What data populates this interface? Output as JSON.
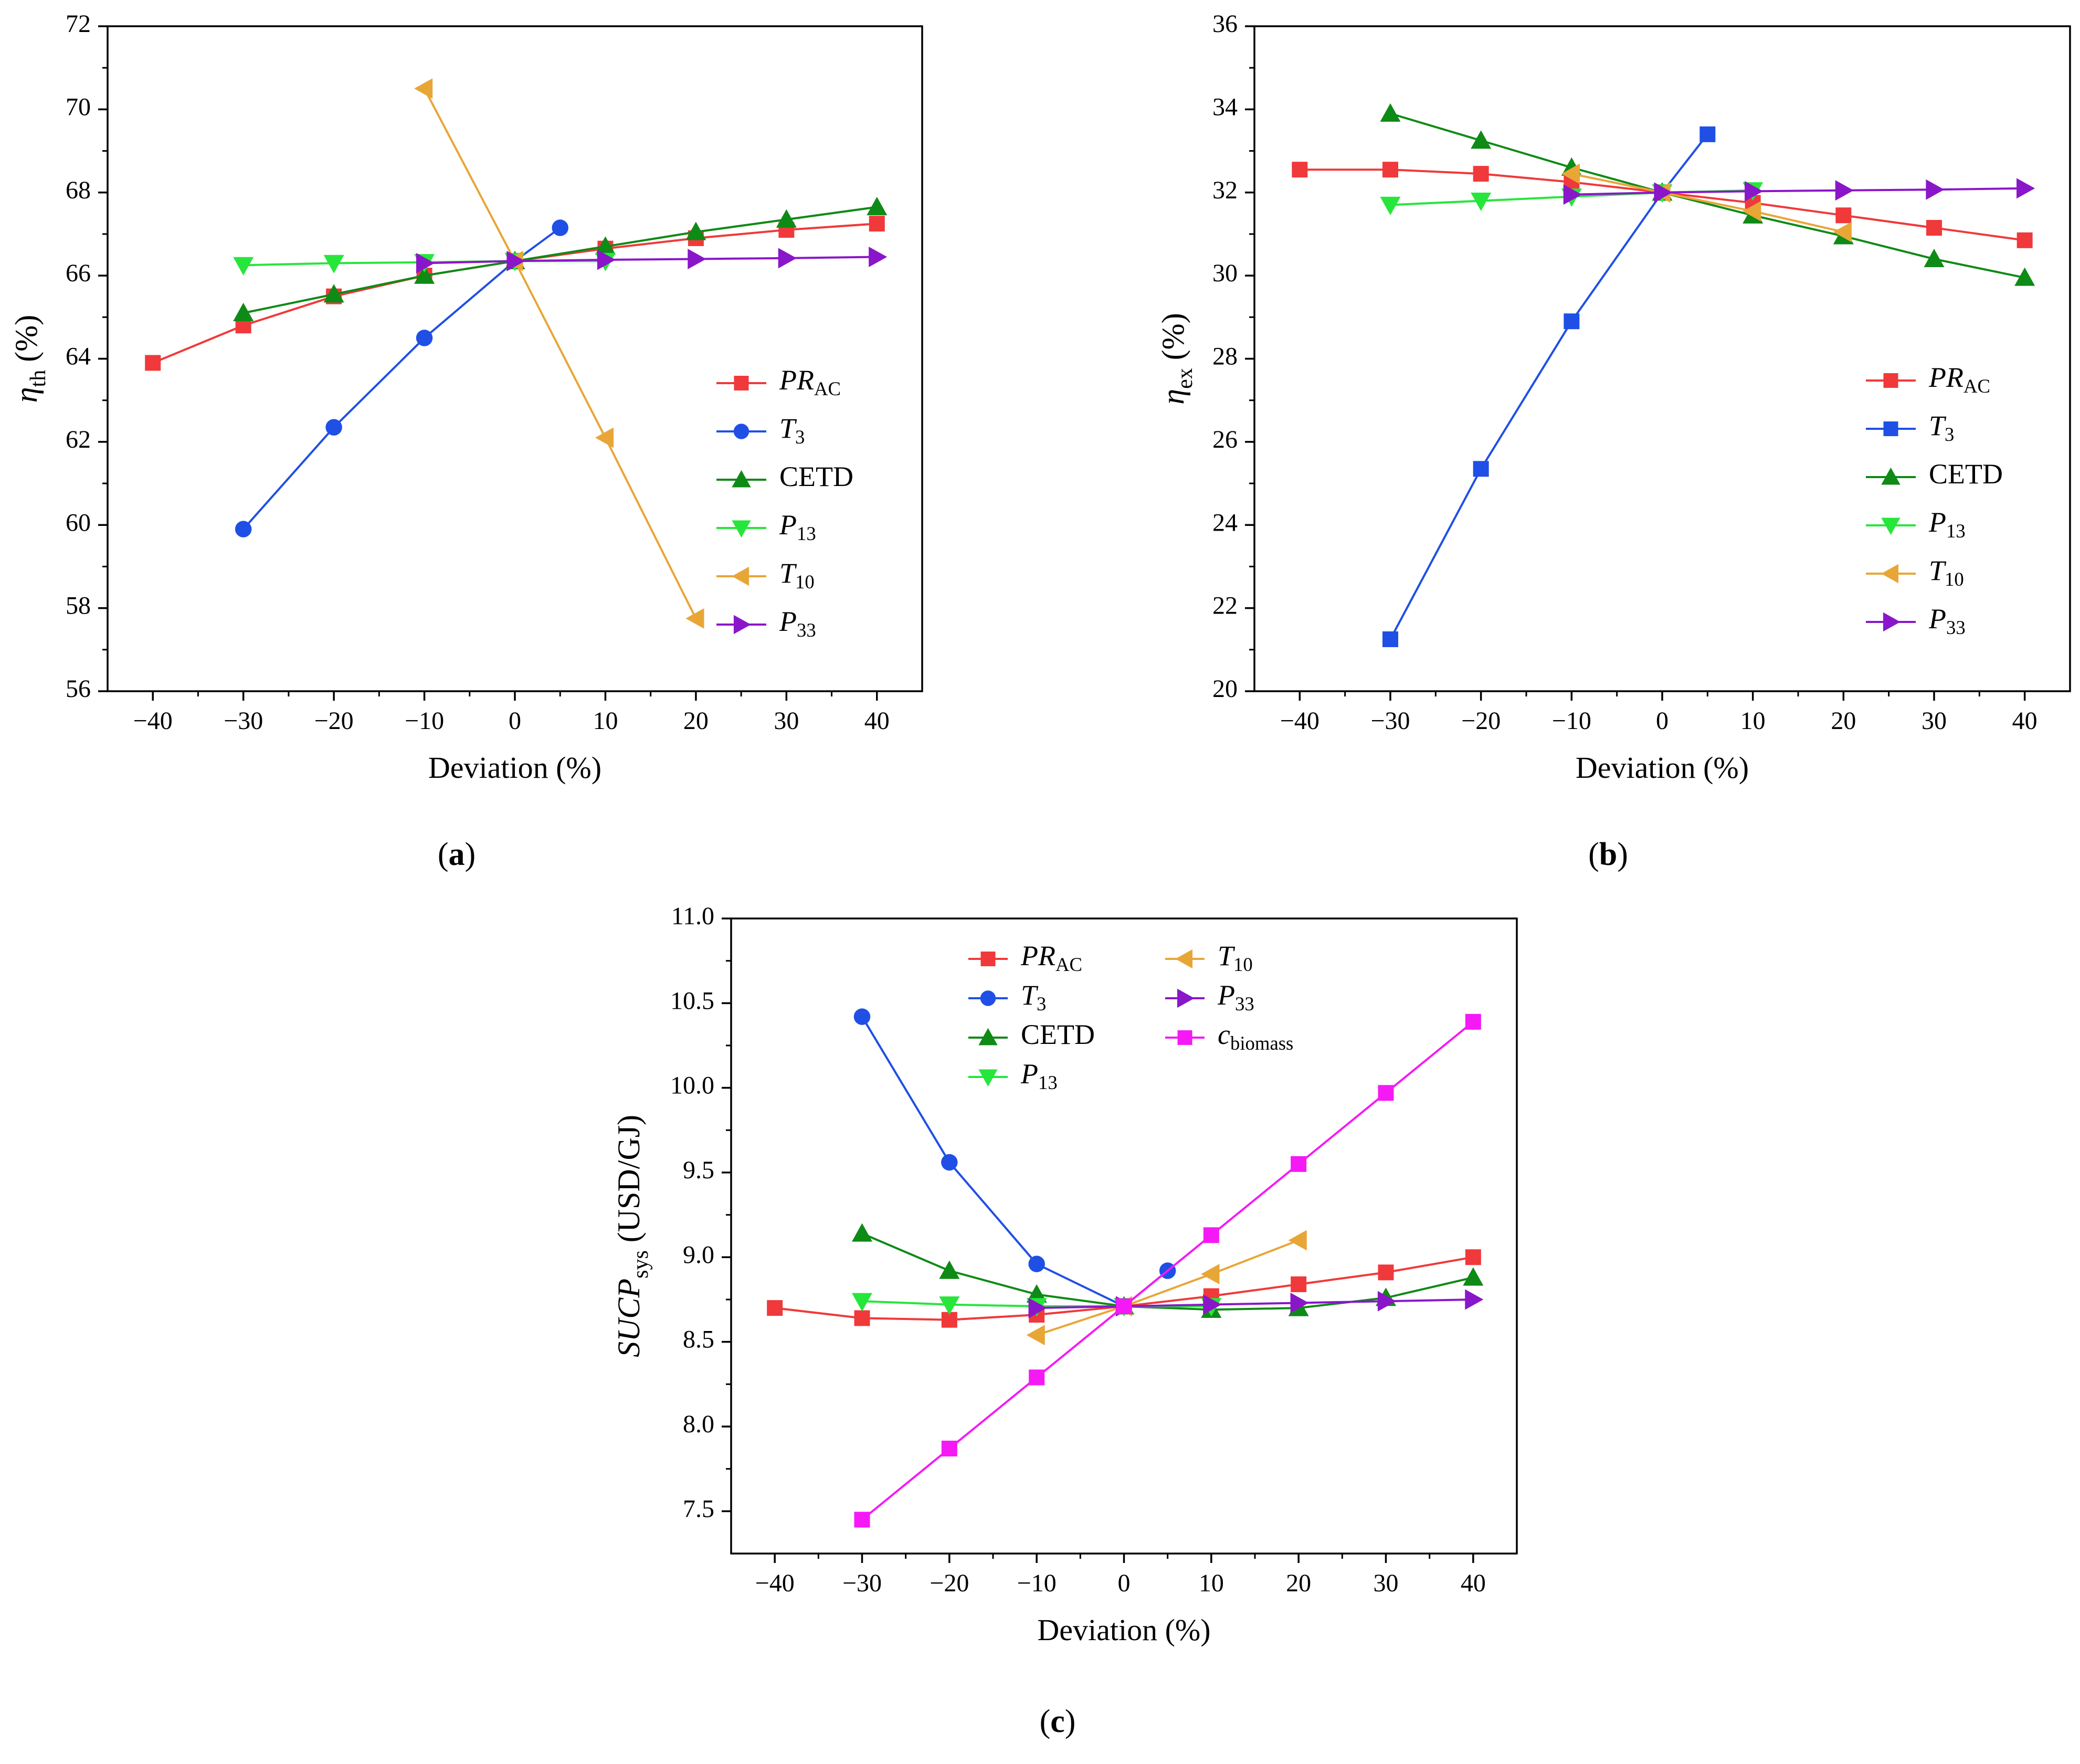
{
  "colors": {
    "PR_AC": "#F0393A",
    "T3": "#1F4FE5",
    "CETD": "#0E8A16",
    "P13": "#27E63B",
    "T10": "#E8A637",
    "P33": "#8A16C9",
    "c_biomass": "#F519F5"
  },
  "chart_data": [
    {
      "id": "a",
      "type": "line",
      "panel_label": "(a)",
      "panel_letter": "a",
      "xlabel": "Deviation (%)",
      "ylabel": {
        "main": "η",
        "sub": "th",
        "suffix": " (%)"
      },
      "xlim": [
        -45,
        45
      ],
      "ylim": [
        56,
        72
      ],
      "xticks": [
        -40,
        -30,
        -20,
        -10,
        0,
        10,
        20,
        30,
        40
      ],
      "xtick_labels": [
        "−40",
        "−30",
        "−20",
        "−10",
        "0",
        "10",
        "20",
        "30",
        "40"
      ],
      "yticks": [
        56,
        58,
        60,
        62,
        64,
        66,
        68,
        70,
        72
      ],
      "ytick_labels": [
        "56",
        "58",
        "60",
        "62",
        "64",
        "66",
        "68",
        "70",
        "72"
      ],
      "legend": {
        "position": "lower-right",
        "columns": 1
      },
      "series": [
        {
          "key": "PR_AC",
          "name": "PR",
          "name_sub": "AC",
          "italic": true,
          "marker": "square",
          "x": [
            -40,
            -30,
            -20,
            -10,
            0,
            10,
            20,
            30,
            40
          ],
          "y": [
            63.9,
            64.8,
            65.5,
            66.0,
            66.35,
            66.65,
            66.9,
            67.1,
            67.25
          ]
        },
        {
          "key": "T3",
          "name": "T",
          "name_sub": "3",
          "italic": true,
          "marker": "circle",
          "x": [
            -30,
            -20,
            -10,
            0,
            5
          ],
          "y": [
            59.9,
            62.35,
            64.5,
            66.35,
            67.15
          ]
        },
        {
          "key": "CETD",
          "name": "CETD",
          "name_sub": "",
          "italic": false,
          "marker": "triangle-up",
          "x": [
            -30,
            -20,
            -10,
            0,
            10,
            20,
            30,
            40
          ],
          "y": [
            65.1,
            65.55,
            66.0,
            66.35,
            66.7,
            67.05,
            67.35,
            67.65
          ]
        },
        {
          "key": "P13",
          "name": "P",
          "name_sub": "13",
          "italic": true,
          "marker": "triangle-down",
          "x": [
            -30,
            -20,
            -10,
            0,
            10
          ],
          "y": [
            66.25,
            66.3,
            66.32,
            66.35,
            66.35
          ]
        },
        {
          "key": "T10",
          "name": "T",
          "name_sub": "10",
          "italic": true,
          "marker": "triangle-left",
          "x": [
            -10,
            0,
            10,
            20
          ],
          "y": [
            70.5,
            66.35,
            62.1,
            57.75
          ]
        },
        {
          "key": "P33",
          "name": "P",
          "name_sub": "33",
          "italic": true,
          "marker": "triangle-right",
          "x": [
            -10,
            0,
            10,
            20,
            30,
            40
          ],
          "y": [
            66.3,
            66.35,
            66.38,
            66.4,
            66.42,
            66.45
          ]
        }
      ]
    },
    {
      "id": "b",
      "type": "line",
      "panel_label": "(b)",
      "panel_letter": "b",
      "xlabel": "Deviation (%)",
      "ylabel": {
        "main": "η",
        "sub": "ex",
        "suffix": " (%)"
      },
      "xlim": [
        -45,
        45
      ],
      "ylim": [
        20,
        36
      ],
      "xticks": [
        -40,
        -30,
        -20,
        -10,
        0,
        10,
        20,
        30,
        40
      ],
      "xtick_labels": [
        "−40",
        "−30",
        "−20",
        "−10",
        "0",
        "10",
        "20",
        "30",
        "40"
      ],
      "yticks": [
        20,
        22,
        24,
        26,
        28,
        30,
        32,
        34,
        36
      ],
      "ytick_labels": [
        "20",
        "22",
        "24",
        "26",
        "28",
        "30",
        "32",
        "34",
        "36"
      ],
      "legend": {
        "position": "lower-right",
        "columns": 1
      },
      "series": [
        {
          "key": "PR_AC",
          "name": "PR",
          "name_sub": "AC",
          "italic": true,
          "marker": "square",
          "x": [
            -40,
            -30,
            -20,
            -10,
            0,
            10,
            20,
            30,
            40
          ],
          "y": [
            32.55,
            32.55,
            32.45,
            32.25,
            32.0,
            31.75,
            31.45,
            31.15,
            30.85
          ]
        },
        {
          "key": "T3",
          "name": "T",
          "name_sub": "3",
          "italic": true,
          "marker": "square",
          "x": [
            -30,
            -20,
            -10,
            0,
            5
          ],
          "y": [
            21.25,
            25.35,
            28.9,
            32.0,
            33.4
          ]
        },
        {
          "key": "CETD",
          "name": "CETD",
          "name_sub": "",
          "italic": false,
          "marker": "triangle-up",
          "x": [
            -30,
            -20,
            -10,
            0,
            10,
            20,
            30,
            40
          ],
          "y": [
            33.9,
            33.25,
            32.6,
            32.0,
            31.45,
            30.95,
            30.4,
            29.95
          ]
        },
        {
          "key": "P13",
          "name": "P",
          "name_sub": "13",
          "italic": true,
          "marker": "triangle-down",
          "x": [
            -30,
            -20,
            -10,
            0,
            10
          ],
          "y": [
            31.7,
            31.8,
            31.9,
            32.0,
            32.05
          ]
        },
        {
          "key": "T10",
          "name": "T",
          "name_sub": "10",
          "italic": true,
          "marker": "triangle-left",
          "x": [
            -10,
            0,
            10,
            20
          ],
          "y": [
            32.45,
            32.0,
            31.55,
            31.05
          ]
        },
        {
          "key": "P33",
          "name": "P",
          "name_sub": "33",
          "italic": true,
          "marker": "triangle-right",
          "x": [
            -10,
            0,
            10,
            20,
            30,
            40
          ],
          "y": [
            31.95,
            32.0,
            32.03,
            32.05,
            32.07,
            32.1
          ]
        }
      ]
    },
    {
      "id": "c",
      "type": "line",
      "panel_label": "(c)",
      "panel_letter": "c",
      "xlabel": "Deviation (%)",
      "ylabel": {
        "main": "SUCP",
        "sub": "sys",
        "suffix": " (USD/GJ)"
      },
      "xlim": [
        -45,
        45
      ],
      "ylim": [
        7.25,
        11.0
      ],
      "xticks": [
        -40,
        -30,
        -20,
        -10,
        0,
        10,
        20,
        30,
        40
      ],
      "xtick_labels": [
        "−40",
        "−30",
        "−20",
        "−10",
        "0",
        "10",
        "20",
        "30",
        "40"
      ],
      "yticks": [
        7.5,
        8.0,
        8.5,
        9.0,
        9.5,
        10.0,
        10.5,
        11.0
      ],
      "ytick_labels": [
        "7.5",
        "8.0",
        "8.5",
        "9.0",
        "9.5",
        "10.0",
        "10.5",
        "11.0"
      ],
      "legend": {
        "position": "top-center",
        "columns": 2
      },
      "series": [
        {
          "key": "PR_AC",
          "name": "PR",
          "name_sub": "AC",
          "italic": true,
          "marker": "square",
          "x": [
            -40,
            -30,
            -20,
            -10,
            0,
            10,
            20,
            30,
            40
          ],
          "y": [
            8.7,
            8.64,
            8.63,
            8.66,
            8.71,
            8.77,
            8.84,
            8.91,
            9.0
          ]
        },
        {
          "key": "T3",
          "name": "T",
          "name_sub": "3",
          "italic": true,
          "marker": "circle",
          "x": [
            -30,
            -20,
            -10,
            0,
            5
          ],
          "y": [
            10.42,
            9.56,
            8.96,
            8.71,
            8.92
          ]
        },
        {
          "key": "CETD",
          "name": "CETD",
          "name_sub": "",
          "italic": false,
          "marker": "triangle-up",
          "x": [
            -30,
            -20,
            -10,
            0,
            10,
            20,
            30,
            40
          ],
          "y": [
            9.14,
            8.92,
            8.78,
            8.71,
            8.69,
            8.7,
            8.76,
            8.88
          ]
        },
        {
          "key": "P13",
          "name": "P",
          "name_sub": "13",
          "italic": true,
          "marker": "triangle-down",
          "x": [
            -30,
            -20,
            -10,
            0,
            10
          ],
          "y": [
            8.74,
            8.72,
            8.71,
            8.71,
            8.71
          ]
        },
        {
          "key": "T10",
          "name": "T",
          "name_sub": "10",
          "italic": true,
          "marker": "triangle-left",
          "x": [
            -10,
            0,
            10,
            20
          ],
          "y": [
            8.54,
            8.71,
            8.9,
            9.1
          ]
        },
        {
          "key": "P33",
          "name": "P",
          "name_sub": "33",
          "italic": true,
          "marker": "triangle-right",
          "x": [
            -10,
            0,
            10,
            20,
            30,
            40
          ],
          "y": [
            8.7,
            8.71,
            8.72,
            8.73,
            8.74,
            8.75
          ]
        },
        {
          "key": "c_biomass",
          "name": "c",
          "name_sub": "biomass",
          "italic": true,
          "marker": "square",
          "x": [
            -30,
            -20,
            -10,
            0,
            10,
            20,
            30,
            40
          ],
          "y": [
            7.45,
            7.87,
            8.29,
            8.71,
            9.13,
            9.55,
            9.97,
            10.39
          ]
        }
      ]
    }
  ]
}
